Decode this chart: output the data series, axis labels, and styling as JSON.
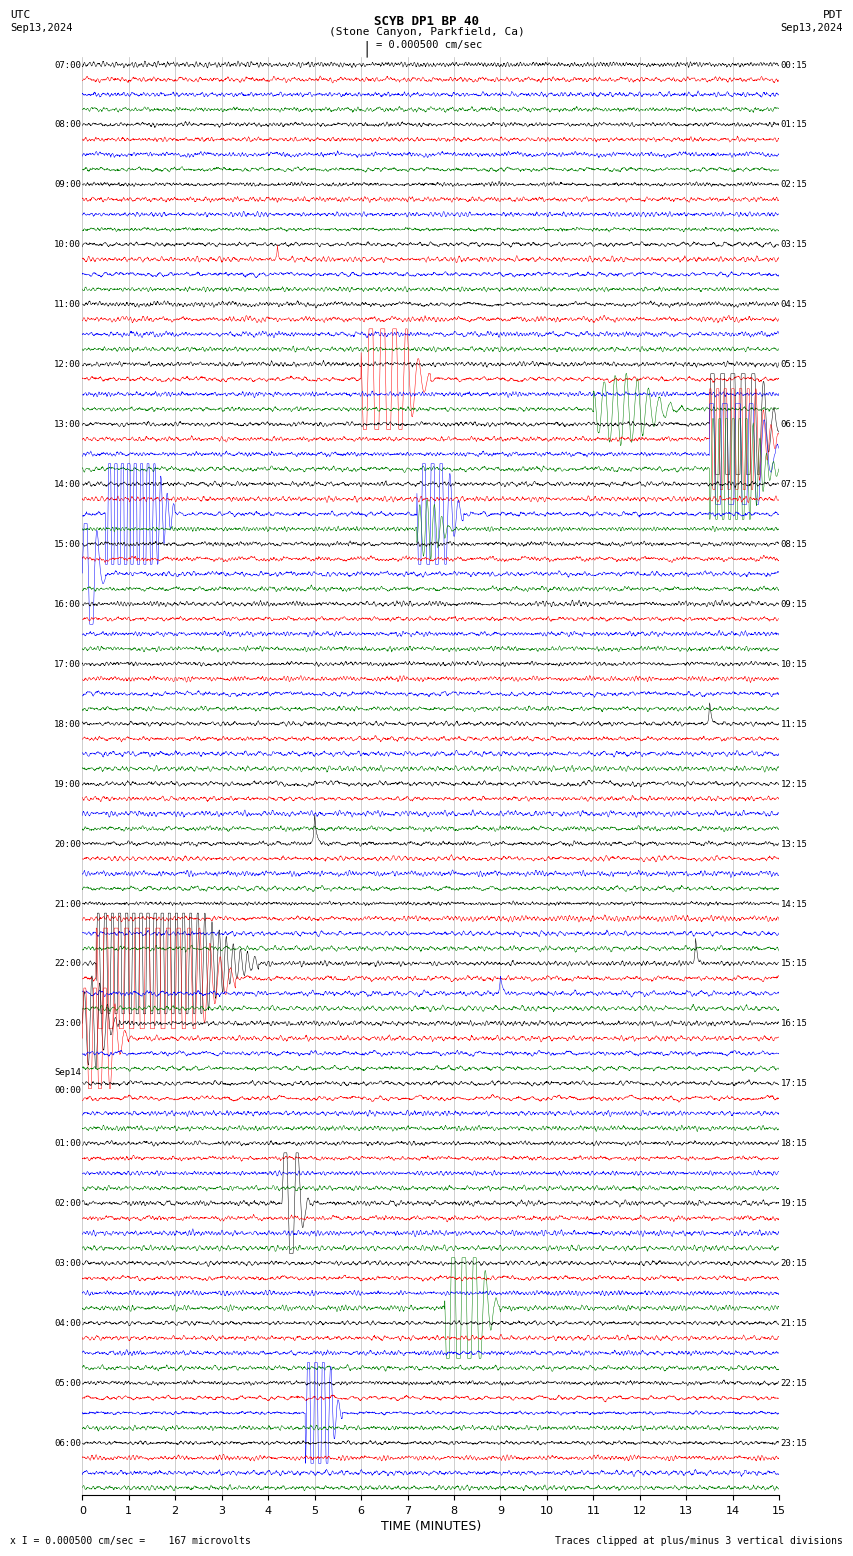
{
  "title_line1": "SCYB DP1 BP 40",
  "title_line2": "(Stone Canyon, Parkfield, Ca)",
  "scale_label": "= 0.000500 cm/sec",
  "utc_label": "UTC",
  "pdt_label": "PDT",
  "date_left": "Sep13,2024",
  "date_right": "Sep13,2024",
  "footer_left": "x I = 0.000500 cm/sec =    167 microvolts",
  "footer_right": "Traces clipped at plus/minus 3 vertical divisions",
  "xlabel": "TIME (MINUTES)",
  "x_ticks": [
    0,
    1,
    2,
    3,
    4,
    5,
    6,
    7,
    8,
    9,
    10,
    11,
    12,
    13,
    14,
    15
  ],
  "n_minutes": 15,
  "noise_amplitude": 0.012,
  "row_labels_utc": [
    "07:00",
    "08:00",
    "09:00",
    "10:00",
    "11:00",
    "12:00",
    "13:00",
    "14:00",
    "15:00",
    "16:00",
    "17:00",
    "18:00",
    "19:00",
    "20:00",
    "21:00",
    "22:00",
    "23:00",
    "Sep14\n00:00",
    "01:00",
    "02:00",
    "03:00",
    "04:00",
    "05:00",
    "06:00"
  ],
  "row_labels_pdt": [
    "00:15",
    "01:15",
    "02:15",
    "03:15",
    "04:15",
    "05:15",
    "06:15",
    "07:15",
    "08:15",
    "09:15",
    "10:15",
    "11:15",
    "12:15",
    "13:15",
    "14:15",
    "15:15",
    "16:15",
    "17:15",
    "18:15",
    "19:15",
    "20:15",
    "21:15",
    "22:15",
    "23:15"
  ],
  "n_label_rows": 24,
  "traces_per_row": 4,
  "trace_colors": [
    "black",
    "red",
    "blue",
    "green"
  ],
  "background_color": "white",
  "font_color": "black",
  "grid_color": "#777777"
}
